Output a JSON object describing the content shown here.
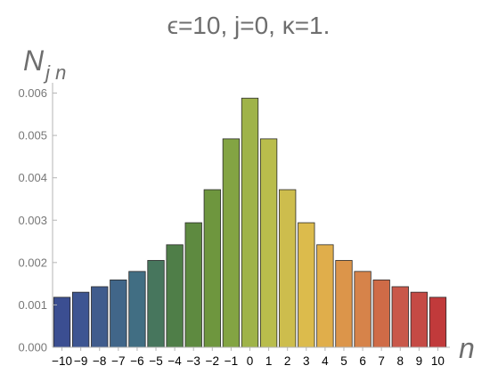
{
  "chart_data": {
    "type": "bar",
    "title": "ϵ=10, j=0, κ=1.",
    "ylabel": "N",
    "ylabel_subscript": "j n",
    "xlabel": "n",
    "categories": [
      "−10",
      "−9",
      "−8",
      "−7",
      "−6",
      "−5",
      "−4",
      "−3",
      "−2",
      "−1",
      "0",
      "1",
      "2",
      "3",
      "4",
      "5",
      "6",
      "7",
      "8",
      "9",
      "10"
    ],
    "values": [
      0.00118,
      0.0013,
      0.00143,
      0.00159,
      0.00179,
      0.00205,
      0.00242,
      0.00294,
      0.00372,
      0.00492,
      0.00588,
      0.00492,
      0.00372,
      0.00294,
      0.00242,
      0.00205,
      0.00179,
      0.00159,
      0.00143,
      0.0013,
      0.00118
    ],
    "colors": [
      "#3b4e91",
      "#3d5592",
      "#405c8d",
      "#416689",
      "#416e83",
      "#47765d",
      "#4f7e48",
      "#5e8a40",
      "#6e963e",
      "#83a443",
      "#9fb349",
      "#b9bd4c",
      "#cdbd4d",
      "#dcbb4c",
      "#e0ae4b",
      "#dc954a",
      "#d6834a",
      "#cf6b47",
      "#c9584a",
      "#c54a45",
      "#c13a3b"
    ],
    "yticks": [
      "0.000",
      "0.001",
      "0.002",
      "0.003",
      "0.004",
      "0.005",
      "0.006"
    ],
    "ylim": [
      0,
      0.0062
    ],
    "grid": false
  }
}
